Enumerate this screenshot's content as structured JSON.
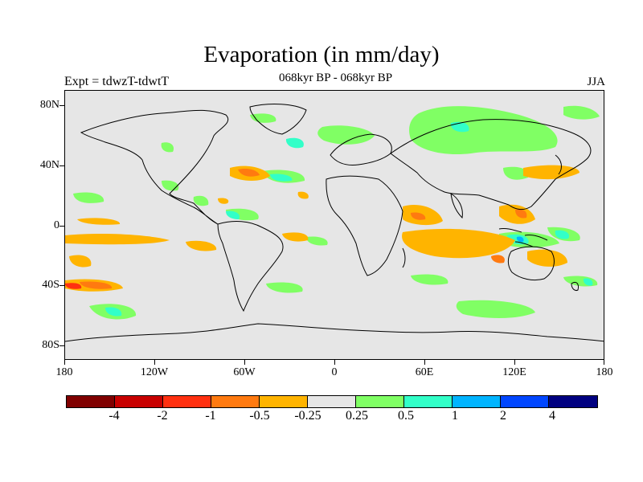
{
  "title": "Evaporation (in mm/day)",
  "subtitle": "068kyr BP - 068kyr BP",
  "left_label": "Expt = tdwzT-tdwtT",
  "season": "JJA",
  "axes": {
    "y_ticks": [
      "80N",
      "40N",
      "0",
      "40S",
      "80S"
    ],
    "x_ticks": [
      "180",
      "120W",
      "60W",
      "0",
      "60E",
      "120E",
      "180"
    ]
  },
  "colorbar": {
    "colors": [
      "#800000",
      "#c80000",
      "#ff3010",
      "#ff7a10",
      "#ffb400",
      "#e6e6e6",
      "#80ff64",
      "#32ffc8",
      "#00b4ff",
      "#0046ff",
      "#000080"
    ],
    "labels": [
      "-4",
      "-2",
      "-1",
      "-0.5",
      "-0.25",
      "0.25",
      "0.5",
      "1",
      "2",
      "4"
    ]
  },
  "map_colors": {
    "background": "#e6e6e6",
    "green": "#80ff64",
    "cyan": "#32ffc8",
    "blue": "#00b4ff",
    "yellow": "#ffb400",
    "orange": "#ff7a10",
    "red": "#ff3010"
  }
}
